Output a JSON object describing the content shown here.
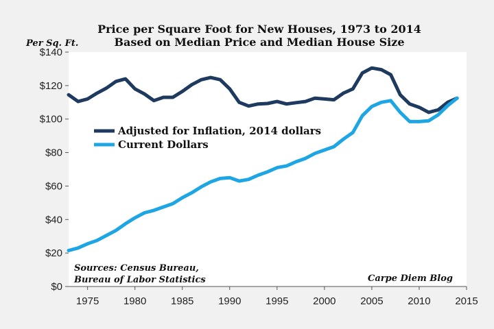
{
  "chart_data": {
    "type": "line",
    "title": "Price per Square Foot for New Houses, 1973 to 2014",
    "subtitle": "Based on Median Price and Median House Size",
    "ylabel": "Per Sq. Ft.",
    "xlim": [
      1973,
      2015
    ],
    "ylim": [
      0,
      140
    ],
    "x_ticks": [
      1975,
      1980,
      1985,
      1990,
      1995,
      2000,
      2005,
      2010,
      2015
    ],
    "y_ticks": [
      {
        "value": 0,
        "label": "$0"
      },
      {
        "value": 20,
        "label": "$20"
      },
      {
        "value": 40,
        "label": "$40"
      },
      {
        "value": 60,
        "label": "$60"
      },
      {
        "value": 80,
        "label": "$80"
      },
      {
        "value": 100,
        "label": "$100"
      },
      {
        "value": 120,
        "label": "$120"
      },
      {
        "value": 140,
        "label": "$140"
      }
    ],
    "grid": false,
    "legend_position": "left, upper-middle",
    "x": [
      1973,
      1974,
      1975,
      1976,
      1977,
      1978,
      1979,
      1980,
      1981,
      1982,
      1983,
      1984,
      1985,
      1986,
      1987,
      1988,
      1989,
      1990,
      1991,
      1992,
      1993,
      1994,
      1995,
      1996,
      1997,
      1998,
      1999,
      2000,
      2001,
      2002,
      2003,
      2004,
      2005,
      2006,
      2007,
      2008,
      2009,
      2010,
      2011,
      2012,
      2013,
      2014
    ],
    "series": [
      {
        "name": "Adjusted for Inflation, 2014 dollars",
        "color": "#1f3a5f",
        "values": [
          114.5,
          110.5,
          112,
          115.5,
          118.5,
          122.5,
          124,
          118,
          115,
          111,
          113,
          113,
          116.5,
          120.5,
          123.5,
          124.8,
          123.5,
          118,
          110,
          107.8,
          109,
          109.3,
          110.5,
          109,
          109.8,
          110.5,
          112.5,
          112,
          111.5,
          115.5,
          118,
          127.5,
          130.5,
          129.5,
          126.5,
          114.5,
          109,
          107,
          104,
          105.5,
          110,
          112.5
        ]
      },
      {
        "name": "Current Dollars",
        "color": "#1ea5e3",
        "values": [
          21.5,
          23,
          25.5,
          27.5,
          30.5,
          33.5,
          37.5,
          41,
          44,
          45.5,
          47.5,
          49.5,
          53,
          56,
          59.5,
          62.5,
          64.5,
          65,
          63,
          64,
          66.5,
          68.5,
          71,
          72,
          74.5,
          76.5,
          79.5,
          81.5,
          83.5,
          88,
          92,
          102,
          107.5,
          110,
          111,
          104,
          98.5,
          98.5,
          99,
          102.5,
          108,
          112.5
        ]
      }
    ],
    "annotations": [
      "Sources: Census Bureau,",
      "Bureau of Labor Statistics",
      "Carpe Diem Blog"
    ]
  }
}
